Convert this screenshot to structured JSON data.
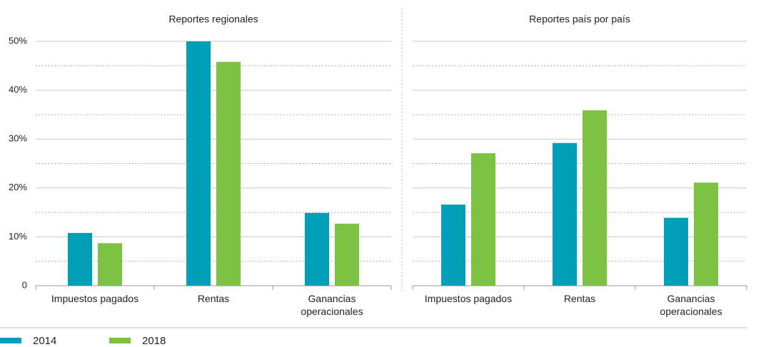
{
  "chart_data": {
    "type": "bar",
    "ylim": [
      0,
      50
    ],
    "yticks": [
      0,
      {
        "value": 10,
        "label": "10%"
      },
      {
        "value": 20,
        "label": "20%"
      },
      {
        "value": 30,
        "label": "30%"
      },
      {
        "value": 40,
        "label": "40%"
      },
      {
        "value": 50,
        "label": "50%"
      }
    ],
    "minor_yticks": [
      5,
      15,
      25,
      35,
      45
    ],
    "grid": true,
    "legend": "bottom-left",
    "panels": [
      {
        "title": "Reportes regionales",
        "categories": [
          "Impuestos pagados",
          "Rentas",
          "Ganancias operacionales"
        ]
      },
      {
        "title": "Reportes país por país",
        "categories": [
          "Impuestos pagados",
          "Rentas",
          "Ganancias operacionales"
        ]
      }
    ],
    "series": [
      {
        "name": "2014",
        "color": "#009fb8",
        "values": [
          [
            10.8,
            50,
            14.9
          ],
          [
            16.6,
            29.2,
            13.9
          ]
        ]
      },
      {
        "name": "2018",
        "color": "#7dc242",
        "values": [
          [
            8.7,
            45.8,
            12.7
          ],
          [
            27.1,
            35.9,
            21.1
          ]
        ]
      }
    ]
  }
}
